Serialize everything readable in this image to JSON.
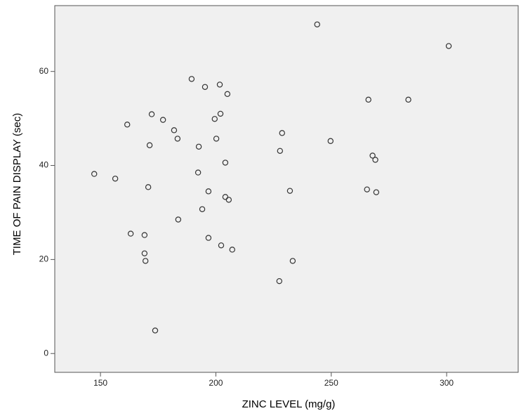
{
  "chart_data": {
    "type": "scatter",
    "xlabel": "ZINC LEVEL (mg/g)",
    "ylabel": "TIME OF PAIN DISPLAY (sec)",
    "x": [
      243.9,
      300.9,
      189.5,
      195.3,
      201.7,
      205.0,
      266.1,
      283.4,
      172.2,
      202.0,
      161.6,
      177.1,
      199.5,
      181.9,
      228.7,
      183.4,
      200.2,
      249.7,
      171.3,
      192.6,
      227.8,
      267.9,
      269.1,
      204.1,
      147.3,
      192.3,
      156.4,
      170.7,
      196.8,
      232.1,
      265.5,
      269.5,
      204.1,
      205.6,
      194.1,
      183.7,
      163.1,
      169.1,
      196.8,
      202.3,
      207.1,
      169.1,
      169.5,
      233.3,
      227.5,
      173.7
    ],
    "values": [
      70.0,
      65.4,
      58.4,
      56.7,
      57.2,
      55.2,
      54.0,
      54.0,
      50.9,
      51.0,
      48.7,
      49.7,
      49.9,
      47.5,
      46.9,
      45.7,
      45.7,
      45.2,
      44.3,
      44.0,
      43.1,
      42.1,
      41.2,
      40.6,
      38.2,
      38.5,
      37.2,
      35.4,
      34.5,
      34.6,
      34.9,
      34.3,
      33.3,
      32.7,
      30.7,
      28.5,
      25.5,
      25.2,
      24.6,
      23.0,
      22.1,
      21.3,
      19.7,
      19.7,
      15.4,
      4.9
    ],
    "color": "#333333",
    "xlim": [
      130.2,
      331
    ],
    "ylim": [
      -4,
      74
    ],
    "xticks": [
      150,
      200,
      250,
      300
    ],
    "yticks": [
      0,
      20,
      40,
      60
    ]
  }
}
